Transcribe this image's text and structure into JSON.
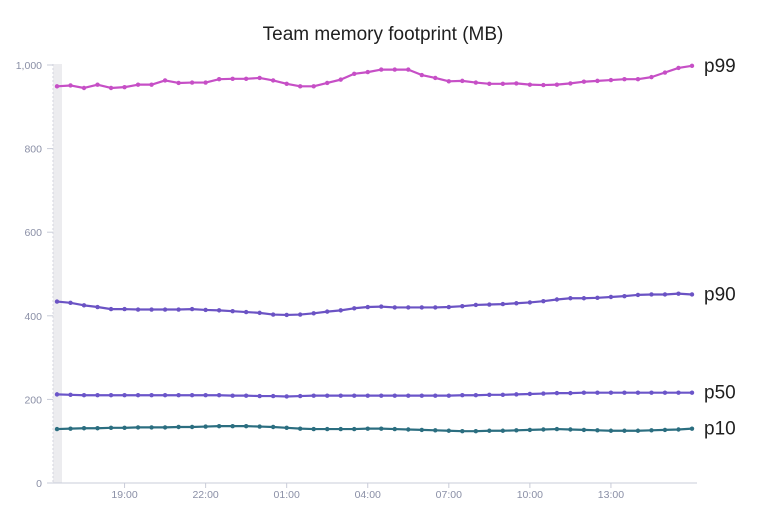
{
  "chart_data": {
    "type": "line",
    "title": "Team memory footprint (MB)",
    "xlabel": "",
    "ylabel": "",
    "ylim": [
      0,
      1000
    ],
    "yticks": [
      0,
      200,
      400,
      600,
      800,
      1000
    ],
    "ytick_labels": [
      "0",
      "200",
      "400",
      "600",
      "800",
      "1,000"
    ],
    "x_tick_labels": [
      "19:00",
      "22:00",
      "01:00",
      "04:00",
      "07:00",
      "10:00",
      "13:00"
    ],
    "x_tick_index": [
      5,
      11,
      17,
      23,
      29,
      35,
      41
    ],
    "x_count": 48,
    "grid": false,
    "legend": "end-of-line labels",
    "series": [
      {
        "name": "p99",
        "color": "#c64fc6",
        "values": [
          949,
          951,
          945,
          953,
          945,
          947,
          953,
          953,
          963,
          957,
          958,
          958,
          966,
          967,
          967,
          969,
          963,
          955,
          949,
          949,
          957,
          965,
          979,
          983,
          989,
          989,
          989,
          976,
          969,
          961,
          962,
          958,
          955,
          955,
          956,
          953,
          952,
          953,
          956,
          960,
          962,
          964,
          966,
          966,
          971,
          982,
          993,
          998
        ]
      },
      {
        "name": "p90",
        "color": "#6b53c4",
        "values": [
          434,
          431,
          425,
          421,
          416,
          416,
          415,
          415,
          415,
          415,
          416,
          414,
          413,
          411,
          409,
          407,
          403,
          402,
          403,
          406,
          410,
          413,
          418,
          421,
          422,
          420,
          420,
          420,
          420,
          421,
          423,
          426,
          427,
          428,
          430,
          432,
          435,
          439,
          442,
          442,
          443,
          445,
          447,
          450,
          451,
          451,
          453,
          451
        ]
      },
      {
        "name": "p50",
        "color": "#6b55c9",
        "values": [
          212,
          211,
          210,
          210,
          210,
          210,
          210,
          210,
          210,
          210,
          210,
          210,
          210,
          209,
          209,
          208,
          208,
          207,
          208,
          209,
          209,
          209,
          209,
          209,
          209,
          209,
          209,
          209,
          209,
          209,
          210,
          210,
          211,
          211,
          212,
          213,
          214,
          215,
          215,
          216,
          216,
          216,
          216,
          216,
          216,
          216,
          216,
          216
        ]
      },
      {
        "name": "p10",
        "color": "#2b6e80",
        "values": [
          129,
          130,
          131,
          131,
          132,
          132,
          133,
          133,
          133,
          134,
          134,
          135,
          136,
          136,
          136,
          135,
          134,
          132,
          130,
          129,
          129,
          129,
          129,
          130,
          130,
          129,
          128,
          127,
          126,
          125,
          124,
          124,
          125,
          125,
          126,
          127,
          128,
          129,
          128,
          127,
          126,
          125,
          125,
          125,
          126,
          127,
          128,
          130
        ]
      }
    ]
  }
}
